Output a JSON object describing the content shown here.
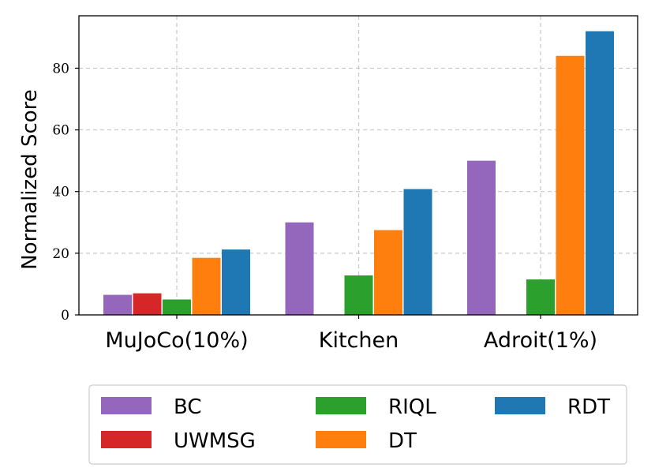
{
  "chart_data": {
    "type": "bar",
    "categories": [
      "MuJoCo(10%)",
      "Kitchen",
      "Adroit(1%)"
    ],
    "series": [
      {
        "name": "BC",
        "color": "#9467bd",
        "values": [
          6.5,
          30,
          50
        ]
      },
      {
        "name": "UWMSG",
        "color": "#d62728",
        "values": [
          7,
          null,
          null
        ]
      },
      {
        "name": "RIQL",
        "color": "#2ca02c",
        "values": [
          5,
          12.8,
          11.5
        ]
      },
      {
        "name": "DT",
        "color": "#ff7f0e",
        "values": [
          18.5,
          27.5,
          84
        ]
      },
      {
        "name": "RDT",
        "color": "#1f77b4",
        "values": [
          21.2,
          40.8,
          92
        ]
      }
    ],
    "title": "",
    "xlabel": "",
    "ylabel": "Normalized Score",
    "ylim": [
      0,
      97
    ],
    "yticks": [
      0,
      20,
      40,
      60,
      80
    ],
    "grid": true,
    "legend_position": "bottom-outside",
    "legend_order": [
      "BC",
      "UWMSG",
      "RIQL",
      "DT",
      "RDT"
    ]
  }
}
